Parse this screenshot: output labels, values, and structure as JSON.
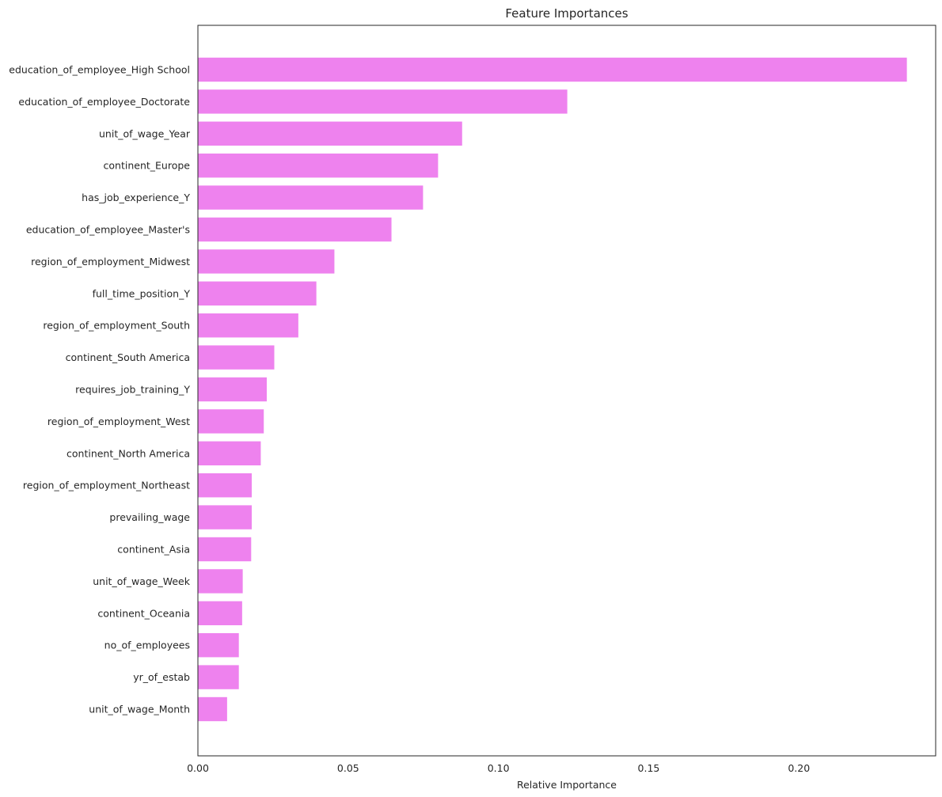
{
  "chart_data": {
    "type": "bar",
    "orientation": "horizontal",
    "title": "Feature Importances",
    "xlabel": "Relative Importance",
    "ylabel": "",
    "xlim": [
      0,
      0.2455
    ],
    "xticks": [
      0.0,
      0.05,
      0.1,
      0.15,
      0.2
    ],
    "xtick_labels": [
      "0.00",
      "0.05",
      "0.10",
      "0.15",
      "0.20"
    ],
    "grid": false,
    "bar_color": "#ee82ee",
    "categories": [
      "education_of_employee_High School",
      "education_of_employee_Doctorate",
      "unit_of_wage_Year",
      "continent_Europe",
      "has_job_experience_Y",
      "education_of_employee_Master's",
      "region_of_employment_Midwest",
      "full_time_position_Y",
      "region_of_employment_South",
      "continent_South America",
      "requires_job_training_Y",
      "region_of_employment_West",
      "continent_North America",
      "region_of_employment_Northeast",
      "prevailing_wage",
      "continent_Asia",
      "unit_of_wage_Week",
      "continent_Oceania",
      "no_of_employees",
      "yr_of_estab",
      "unit_of_wage_Month"
    ],
    "values": [
      0.236,
      0.123,
      0.088,
      0.08,
      0.075,
      0.0645,
      0.0455,
      0.0395,
      0.0335,
      0.0255,
      0.023,
      0.022,
      0.021,
      0.018,
      0.018,
      0.0178,
      0.015,
      0.0148,
      0.0137,
      0.0137,
      0.0098
    ]
  }
}
